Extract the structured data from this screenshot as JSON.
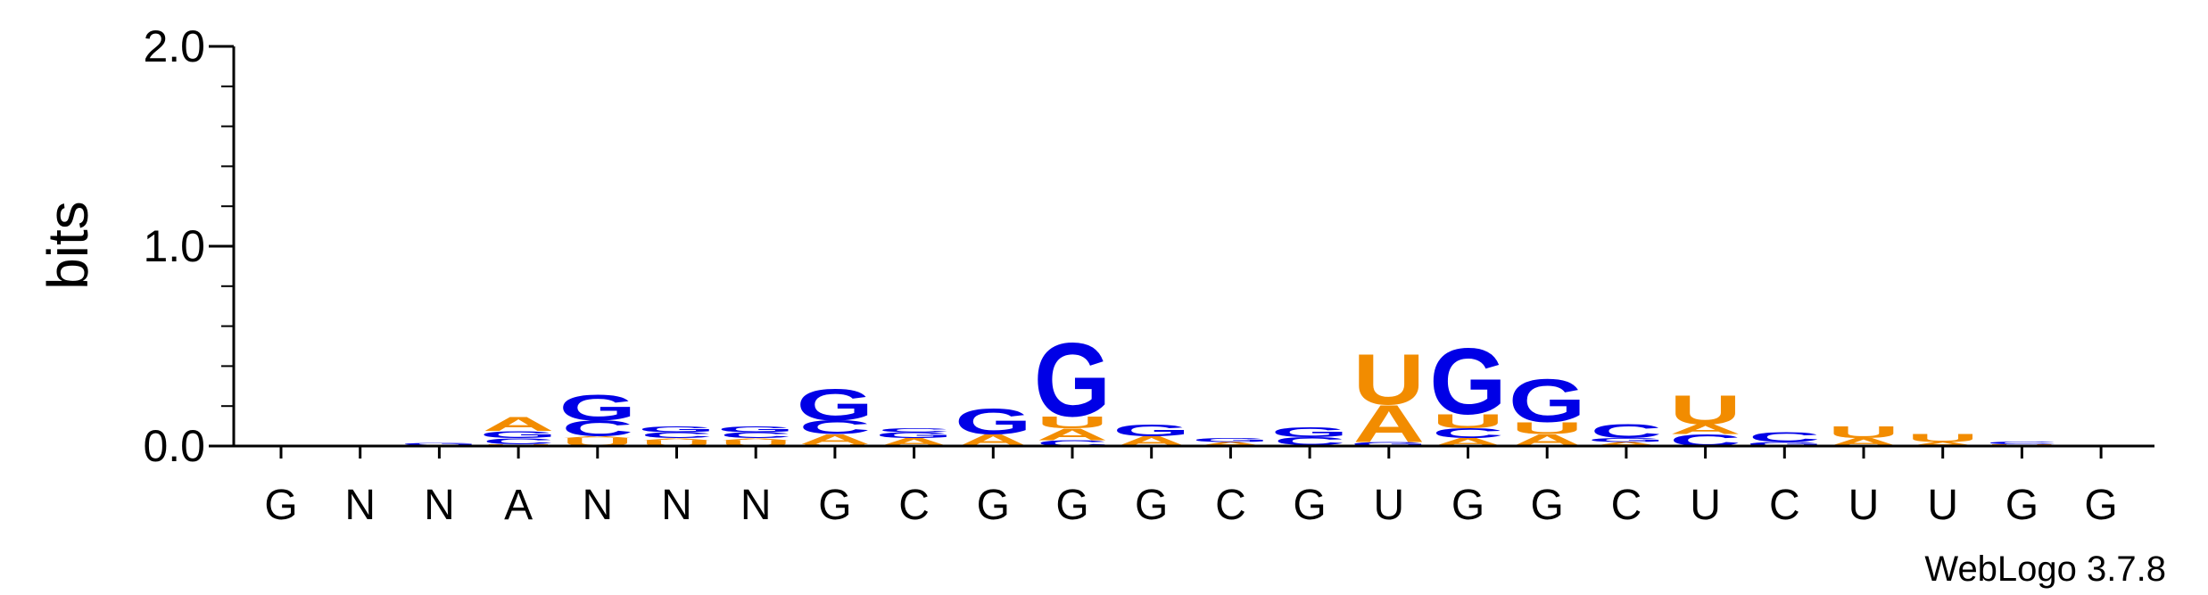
{
  "chart_data": {
    "type": "sequence-logo",
    "ylabel": "bits",
    "ylim": [
      0,
      2.0
    ],
    "yticks": [
      "0.0",
      "1.0",
      "2.0"
    ],
    "credit": "WebLogo 3.7.8",
    "colors": {
      "A": "#f28c00",
      "U": "#f28c00",
      "G": "#0000e6",
      "C": "#0000e6"
    },
    "positions": [
      {
        "label": "G",
        "stack": []
      },
      {
        "label": "N",
        "stack": []
      },
      {
        "label": "N",
        "stack": [
          {
            "letter": "C",
            "height": 0.005
          },
          {
            "letter": "G",
            "height": 0.012
          }
        ]
      },
      {
        "label": "A",
        "stack": [
          {
            "letter": "U",
            "height": 0.01
          },
          {
            "letter": "C",
            "height": 0.03
          },
          {
            "letter": "G",
            "height": 0.035
          },
          {
            "letter": "A",
            "height": 0.07
          }
        ]
      },
      {
        "label": "N",
        "stack": [
          {
            "letter": "U",
            "height": 0.04
          },
          {
            "letter": "A",
            "height": 0.01
          },
          {
            "letter": "C",
            "height": 0.08
          },
          {
            "letter": "G",
            "height": 0.13
          }
        ]
      },
      {
        "label": "N",
        "stack": [
          {
            "letter": "U",
            "height": 0.03
          },
          {
            "letter": "A",
            "height": 0.01
          },
          {
            "letter": "C",
            "height": 0.03
          },
          {
            "letter": "G",
            "height": 0.03
          }
        ]
      },
      {
        "label": "N",
        "stack": [
          {
            "letter": "U",
            "height": 0.03
          },
          {
            "letter": "A",
            "height": 0.01
          },
          {
            "letter": "C",
            "height": 0.03
          },
          {
            "letter": "G",
            "height": 0.03
          }
        ]
      },
      {
        "label": "G",
        "stack": [
          {
            "letter": "U",
            "height": 0.01
          },
          {
            "letter": "A",
            "height": 0.05
          },
          {
            "letter": "C",
            "height": 0.07
          },
          {
            "letter": "G",
            "height": 0.16
          }
        ]
      },
      {
        "label": "C",
        "stack": [
          {
            "letter": "A",
            "height": 0.04
          },
          {
            "letter": "G",
            "height": 0.03
          },
          {
            "letter": "C",
            "height": 0.02
          }
        ]
      },
      {
        "label": "G",
        "stack": [
          {
            "letter": "A",
            "height": 0.06
          },
          {
            "letter": "G",
            "height": 0.13
          }
        ]
      },
      {
        "label": "G",
        "stack": [
          {
            "letter": "C",
            "height": 0.03
          },
          {
            "letter": "A",
            "height": 0.06
          },
          {
            "letter": "U",
            "height": 0.06
          },
          {
            "letter": "G",
            "height": 0.38
          }
        ]
      },
      {
        "label": "G",
        "stack": [
          {
            "letter": "A",
            "height": 0.05
          },
          {
            "letter": "G",
            "height": 0.06
          }
        ]
      },
      {
        "label": "C",
        "stack": [
          {
            "letter": "A",
            "height": 0.02
          },
          {
            "letter": "G",
            "height": 0.02
          }
        ]
      },
      {
        "label": "G",
        "stack": [
          {
            "letter": "U",
            "height": 0.005
          },
          {
            "letter": "C",
            "height": 0.04
          },
          {
            "letter": "G",
            "height": 0.05
          }
        ]
      },
      {
        "label": "U",
        "stack": [
          {
            "letter": "G",
            "height": 0.02
          },
          {
            "letter": "A",
            "height": 0.19
          },
          {
            "letter": "U",
            "height": 0.26
          }
        ]
      },
      {
        "label": "G",
        "stack": [
          {
            "letter": "A",
            "height": 0.04
          },
          {
            "letter": "C",
            "height": 0.05
          },
          {
            "letter": "U",
            "height": 0.07
          },
          {
            "letter": "G",
            "height": 0.34
          }
        ]
      },
      {
        "label": "G",
        "stack": [
          {
            "letter": "A",
            "height": 0.06
          },
          {
            "letter": "U",
            "height": 0.06
          },
          {
            "letter": "G",
            "height": 0.22
          }
        ]
      },
      {
        "label": "C",
        "stack": [
          {
            "letter": "A",
            "height": 0.02
          },
          {
            "letter": "G",
            "height": 0.02
          },
          {
            "letter": "C",
            "height": 0.07
          }
        ]
      },
      {
        "label": "U",
        "stack": [
          {
            "letter": "C",
            "height": 0.06
          },
          {
            "letter": "A",
            "height": 0.05
          },
          {
            "letter": "U",
            "height": 0.15
          }
        ]
      },
      {
        "label": "C",
        "stack": [
          {
            "letter": "G",
            "height": 0.02
          },
          {
            "letter": "C",
            "height": 0.05
          }
        ]
      },
      {
        "label": "U",
        "stack": [
          {
            "letter": "A",
            "height": 0.04
          },
          {
            "letter": "U",
            "height": 0.06
          }
        ]
      },
      {
        "label": "U",
        "stack": [
          {
            "letter": "A",
            "height": 0.02
          },
          {
            "letter": "U",
            "height": 0.04
          }
        ]
      },
      {
        "label": "G",
        "stack": [
          {
            "letter": "U",
            "height": 0.01
          },
          {
            "letter": "C",
            "height": 0.015
          }
        ]
      },
      {
        "label": "G",
        "stack": []
      }
    ]
  }
}
